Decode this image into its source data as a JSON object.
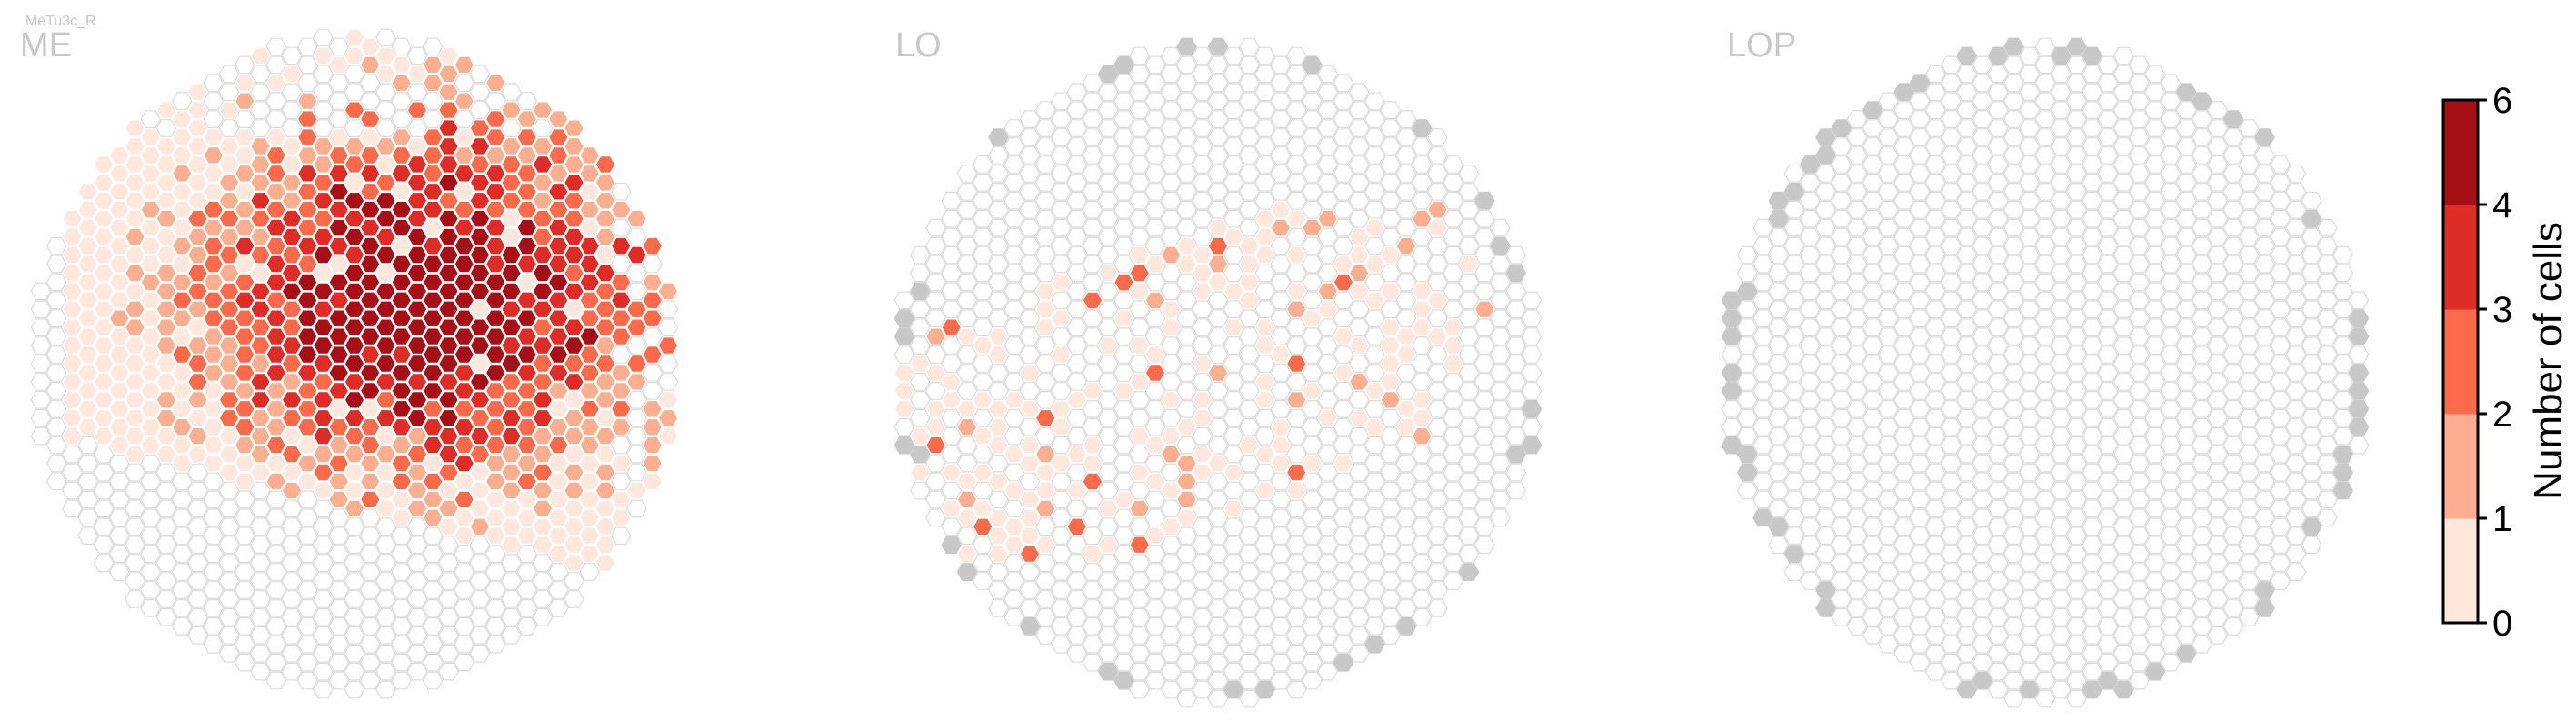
{
  "chart_data": {
    "type": "heatmap",
    "cell_type_label": "MeTu3c_R",
    "panels": [
      {
        "title": "ME",
        "key": "ME"
      },
      {
        "title": "LO",
        "key": "LO"
      },
      {
        "title": "LOP",
        "key": "LOP"
      }
    ],
    "colorbar": {
      "label": "Number of cells",
      "ticks": [
        0,
        1,
        2,
        3,
        4,
        6
      ],
      "bins": [
        {
          "range": "0-1",
          "color": "#fee8de"
        },
        {
          "range": "1-2",
          "color": "#fcae91"
        },
        {
          "range": "2-3",
          "color": "#fb6a4a"
        },
        {
          "range": "3-4",
          "color": "#de2d26"
        },
        {
          "range": "4-6",
          "color": "#a50f15"
        }
      ]
    },
    "colors": {
      "empty_hex_stroke": "#dcdcdc",
      "boundary_hex": "#c8c8c8",
      "title": "#c8c8c8"
    }
  }
}
